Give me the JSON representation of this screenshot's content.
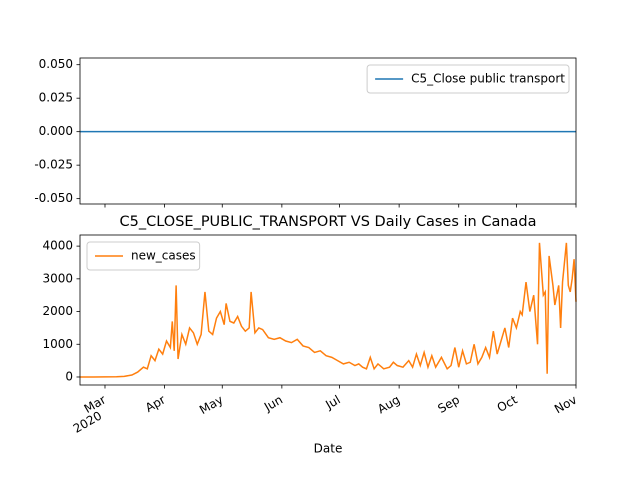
{
  "chart_data": [
    {
      "type": "line",
      "series": [
        {
          "name": "C5_Close public transport",
          "color": "#1f77b4",
          "x": [
            -13,
            245
          ],
          "values": [
            0,
            0
          ]
        }
      ],
      "xlim": [
        -13,
        245
      ],
      "xticks": [
        0,
        31,
        61,
        92,
        122,
        153,
        184,
        214,
        245
      ],
      "ylim": [
        -0.054,
        0.055
      ],
      "yticks": [
        {
          "value": -0.05,
          "label": "-0.050"
        },
        {
          "value": -0.025,
          "label": "-0.025"
        },
        {
          "value": 0,
          "label": "0.000"
        },
        {
          "value": 0.025,
          "label": "0.025"
        },
        {
          "value": 0.05,
          "label": "0.050"
        }
      ],
      "legend": "upper right"
    },
    {
      "type": "line",
      "title": "C5_CLOSE_PUBLIC_TRANSPORT VS Daily Cases in Canada",
      "xlabel": "Date",
      "x_year": "2020",
      "series": [
        {
          "name": "new_cases",
          "color": "#ff7f0e",
          "x": [
            -13,
            -6,
            0,
            6,
            10,
            14,
            17,
            20,
            22,
            24,
            26,
            28,
            30,
            32,
            34,
            35,
            36,
            37,
            38,
            40,
            42,
            44,
            46,
            48,
            50,
            52,
            54,
            56,
            58,
            60,
            62,
            63,
            65,
            67,
            69,
            71,
            73,
            75,
            76,
            78,
            80,
            82,
            85,
            88,
            91,
            94,
            97,
            100,
            103,
            106,
            109,
            112,
            115,
            118,
            121,
            124,
            127,
            130,
            132,
            134,
            136,
            138,
            140,
            142,
            145,
            148,
            150,
            152,
            155,
            158,
            160,
            162,
            164,
            166,
            168,
            170,
            172,
            175,
            178,
            180,
            182,
            184,
            186,
            188,
            190,
            192,
            194,
            196,
            198,
            200,
            202,
            204,
            206,
            208,
            210,
            212,
            214,
            216,
            217,
            219,
            221,
            223,
            225,
            226,
            228,
            229,
            230,
            231,
            233,
            234,
            236,
            237,
            238,
            240,
            241,
            242,
            243,
            244,
            245
          ],
          "values": [
            0,
            0,
            2,
            8,
            20,
            60,
            150,
            300,
            250,
            650,
            500,
            850,
            700,
            1100,
            900,
            1700,
            800,
            2800,
            550,
            1300,
            1000,
            1500,
            1350,
            1000,
            1300,
            2600,
            1400,
            1300,
            1800,
            2000,
            1600,
            2250,
            1700,
            1650,
            1850,
            1550,
            1400,
            1500,
            2600,
            1350,
            1500,
            1450,
            1200,
            1150,
            1200,
            1100,
            1050,
            1150,
            950,
            900,
            750,
            800,
            650,
            600,
            500,
            400,
            450,
            350,
            400,
            300,
            250,
            600,
            250,
            400,
            250,
            300,
            450,
            350,
            300,
            500,
            300,
            700,
            350,
            750,
            300,
            650,
            300,
            600,
            250,
            350,
            900,
            300,
            800,
            400,
            450,
            1000,
            400,
            600,
            900,
            600,
            1400,
            700,
            1100,
            1500,
            900,
            1800,
            1500,
            2000,
            1900,
            2900,
            2000,
            2500,
            1000,
            4100,
            2500,
            2600,
            100,
            3700,
            2800,
            2200,
            2800,
            1500,
            2900,
            4100,
            2800,
            2600,
            3000,
            3600,
            2300
          ]
        }
      ],
      "xlim": [
        -13,
        245
      ],
      "xticks": [
        {
          "value": 0,
          "label": "Mar"
        },
        {
          "value": 31,
          "label": "Apr"
        },
        {
          "value": 61,
          "label": "May"
        },
        {
          "value": 92,
          "label": "Jun"
        },
        {
          "value": 122,
          "label": "Jul"
        },
        {
          "value": 153,
          "label": "Aug"
        },
        {
          "value": 184,
          "label": "Sep"
        },
        {
          "value": 214,
          "label": "Oct"
        },
        {
          "value": 245,
          "label": "Nov"
        }
      ],
      "ylim": [
        -245,
        4340
      ],
      "yticks": [
        0,
        1000,
        2000,
        3000,
        4000
      ],
      "legend": "upper left"
    }
  ]
}
